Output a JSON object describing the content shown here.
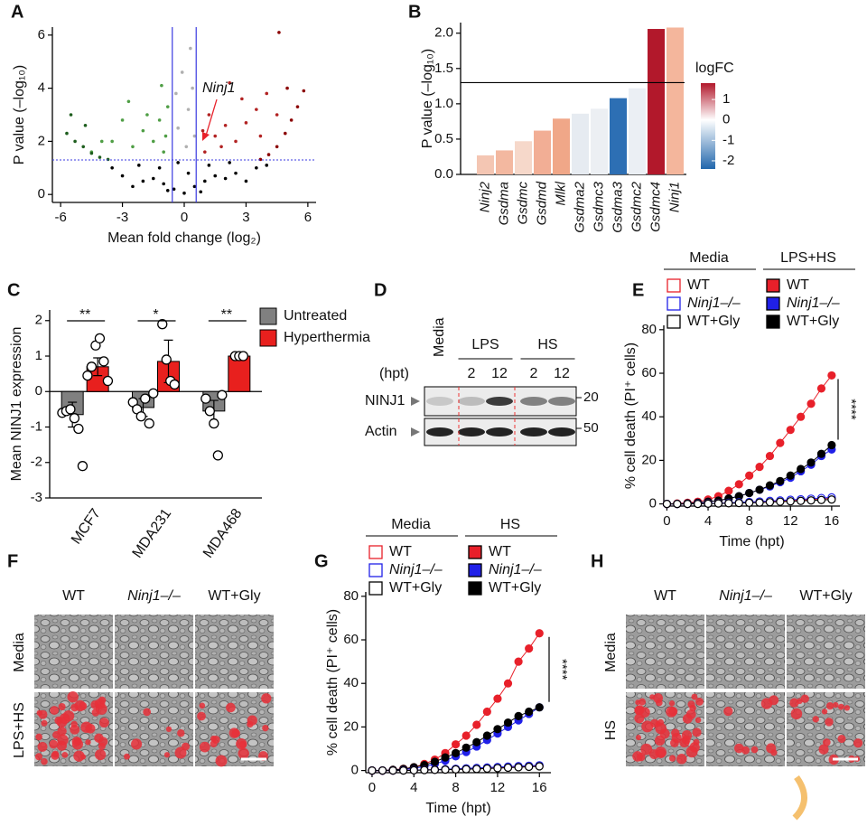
{
  "chart_data": [
    {
      "panel": "A",
      "type": "scatter",
      "xlabel": "Mean fold change (log₂)",
      "ylabel": "P value (–log₁₀)",
      "annotation": "Ninj1",
      "xlim": [
        -6.4,
        6.4
      ],
      "ylim": [
        -0.3,
        6.3
      ],
      "xticks": [
        -6,
        -3,
        0,
        3,
        6
      ],
      "yticks": [
        0,
        2,
        4,
        6
      ],
      "thresholds": {
        "x": [
          -0.58,
          0.58
        ],
        "y": 1.3,
        "color": "#3a3ae0"
      },
      "series": [
        {
          "color": "#000000",
          "x": [
            -2.5,
            -2,
            -1.5,
            -1,
            -0.5,
            0,
            0.5,
            1,
            1.5,
            2,
            2.5,
            3,
            -3,
            -1.2,
            1.2,
            0.2,
            -0.3,
            3.5,
            -3.5,
            2.2,
            -2.2,
            0.8,
            -0.8,
            4
          ],
          "values": [
            0.3,
            0.5,
            0.6,
            0.4,
            0.2,
            0.05,
            0.3,
            0.5,
            0.7,
            0.6,
            0.8,
            0.5,
            0.7,
            1.0,
            1.1,
            0.8,
            1.2,
            1.0,
            1.0,
            1.2,
            1.1,
            0.1,
            0.15,
            1.1
          ]
        },
        {
          "color": "#b0b0b0",
          "x": [
            -0.3,
            0.2,
            0.4,
            -0.1,
            0.3,
            0.1,
            -0.4,
            0.5
          ],
          "values": [
            2.5,
            3.2,
            4.0,
            4.6,
            5.5,
            1.8,
            3.8,
            2.2
          ]
        },
        {
          "color": "#4f9e45",
          "x": [
            -1,
            -1.5,
            -2,
            -3,
            -2.5,
            -1.2,
            -0.8,
            -1.8,
            -3.5,
            -4,
            -1.1,
            -2.7,
            -4.5,
            -0.9
          ],
          "values": [
            1.6,
            2.0,
            2.4,
            2.8,
            1.8,
            2.8,
            3.3,
            3.0,
            2.0,
            2.0,
            4.1,
            3.5,
            1.6,
            2.2
          ]
        },
        {
          "color": "#1e5e1e",
          "x": [
            -5.7,
            -5.3,
            -4.9,
            -4.5,
            -4.1,
            -3.7,
            -5.5,
            -4.8
          ],
          "values": [
            2.3,
            2.0,
            1.8,
            1.55,
            1.4,
            1.32,
            3.0,
            2.6
          ]
        },
        {
          "color": "#b22222",
          "x": [
            1,
            1.5,
            2,
            2.5,
            3,
            3.5,
            2.8,
            1.2,
            4,
            3.7,
            2.2,
            1.8,
            4.5,
            0.9
          ],
          "values": [
            1.6,
            2.2,
            2.6,
            2.0,
            2.7,
            3.2,
            3.6,
            3.0,
            3.8,
            2.2,
            4.2,
            1.8,
            3.0,
            2.4
          ]
        },
        {
          "color": "#8b0000",
          "x": [
            3.7,
            4.1,
            4.5,
            4.9,
            5.2,
            5.5,
            5.8,
            4.6,
            5.0
          ],
          "values": [
            1.32,
            1.5,
            1.8,
            2.3,
            2.8,
            3.3,
            3.9,
            6.1,
            4.0
          ]
        }
      ]
    },
    {
      "panel": "B",
      "type": "bar",
      "ylabel": "P value (–log₁₀)",
      "categories": [
        "Ninj2",
        "Gsdma",
        "Gsdmc",
        "Gsdmd",
        "Mlkl",
        "Gsdma2",
        "Gsdmc3",
        "Gsdma3",
        "Gsdmc2",
        "Gsdmc4",
        "Ninj1"
      ],
      "values": [
        0.27,
        0.34,
        0.47,
        0.62,
        0.79,
        0.86,
        0.93,
        1.08,
        1.22,
        2.06,
        2.08
      ],
      "colors": [
        "#f4c6b3",
        "#f3b8a0",
        "#f6d8ca",
        "#f2ae95",
        "#f0a788",
        "#e6ebf1",
        "#eceff3",
        "#2d6fb4",
        "#ebeff4",
        "#b2182b",
        "#f4b69c"
      ],
      "ylim": [
        0,
        2.15
      ],
      "yticks": [
        {
          "value": 0,
          "label": "0.0"
        },
        0.5,
        {
          "value": 1,
          "label": "1.0"
        },
        1.5,
        {
          "value": 2,
          "label": "2.0"
        }
      ],
      "threshold": 1.3,
      "colorbar": {
        "label": "logFC",
        "lim": [
          -2.4,
          1.8
        ],
        "ticks": [
          1,
          0,
          -1,
          -2
        ],
        "colors": [
          "#b2182b",
          "#ffffff",
          "#2166ac"
        ]
      }
    },
    {
      "panel": "C",
      "type": "grouped_bar",
      "ylabel": "Mean NINJ1 expression",
      "categories": [
        "MCF7",
        "MDA231",
        "MDA468"
      ],
      "ylim": [
        -3,
        2.3
      ],
      "yticks": [
        -3,
        -2,
        -1,
        0,
        1,
        2
      ],
      "annotations": [
        "**",
        "*",
        "**"
      ],
      "series": [
        {
          "name": "Untreated",
          "color": "#808080",
          "values": [
            -0.65,
            -0.45,
            -0.55
          ],
          "errors": [
            0.35,
            0.25,
            0.3
          ],
          "points": [
            [
              -0.6,
              -0.55,
              -0.5,
              -0.75,
              -1.05,
              -2.1
            ],
            [
              -0.3,
              -0.5,
              -0.7,
              -0.2,
              -0.9,
              -0.05
            ],
            [
              -0.2,
              -0.55,
              -0.9,
              -1.8,
              -0.1
            ]
          ]
        },
        {
          "name": "Hyperthermia",
          "color": "#e8201e",
          "values": [
            0.7,
            0.85,
            1.0
          ],
          "errors": [
            0.25,
            0.6,
            0.05
          ],
          "points": [
            [
              0.45,
              0.7,
              1.3,
              1.5,
              0.85,
              0.3
            ],
            [
              1.9,
              0.9,
              0.3,
              0.2
            ],
            [
              1.0,
              1.0,
              1.0
            ]
          ]
        }
      ]
    },
    {
      "panel": "E",
      "type": "line",
      "xlabel": "Time (hpt)",
      "ylabel": "% cell death (PI⁺ cells)",
      "annotation": "****",
      "legend_titles": [
        "Media",
        "LPS+HS"
      ],
      "xlim": [
        -0.3,
        16.8
      ],
      "ylim": [
        -1,
        82
      ],
      "xticks": [
        0,
        4,
        8,
        12,
        16
      ],
      "yticks": [
        0,
        20,
        40,
        60,
        80
      ],
      "x": [
        0,
        1,
        2,
        3,
        4,
        5,
        6,
        7,
        8,
        9,
        10,
        11,
        12,
        13,
        14,
        15,
        16
      ],
      "series": [
        {
          "name": "WT",
          "color": "#e8202a",
          "marker": "filled",
          "values": [
            0,
            0.2,
            0.5,
            1,
            2,
            3.5,
            6,
            9,
            13,
            17,
            22,
            28,
            34,
            40,
            46,
            53,
            59
          ]
        },
        {
          "name": "Ninj1–/–",
          "color": "#2020e8",
          "marker": "filled",
          "values": [
            0,
            0,
            0.2,
            0.5,
            1,
            1.5,
            2.5,
            3.5,
            5,
            6.5,
            8,
            10,
            12,
            15,
            18,
            22,
            25
          ]
        },
        {
          "name": "WT+Gly",
          "color": "#000000",
          "marker": "filled",
          "values": [
            0,
            0,
            0.2,
            0.5,
            1,
            1.5,
            2.5,
            3.5,
            5,
            6.5,
            8.5,
            10.5,
            13,
            16,
            19,
            23,
            27
          ]
        },
        {
          "name": "WT",
          "color": "#e8202a",
          "marker": "open",
          "values": [
            0,
            0,
            0,
            0.1,
            0.2,
            0.3,
            0.4,
            0.5,
            0.7,
            0.9,
            1.1,
            1.3,
            1.5,
            1.8,
            2,
            2.3,
            2.6
          ]
        },
        {
          "name": "Ninj1–/–",
          "color": "#2020e8",
          "marker": "open",
          "values": [
            0,
            0,
            0,
            0.1,
            0.2,
            0.3,
            0.5,
            0.7,
            0.9,
            1.1,
            1.4,
            1.6,
            1.9,
            2.1,
            2.4,
            2.7,
            3
          ]
        },
        {
          "name": "WT+Gly",
          "color": "#000000",
          "marker": "open",
          "values": [
            0,
            0,
            0,
            0,
            0.1,
            0.2,
            0.3,
            0.4,
            0.5,
            0.6,
            0.8,
            1,
            1.2,
            1.4,
            1.6,
            1.8,
            2
          ]
        }
      ]
    },
    {
      "panel": "G",
      "type": "line",
      "xlabel": "Time (hpt)",
      "ylabel": "% cell death (PI⁺ cells)",
      "annotation": "****",
      "legend_titles": [
        "Media",
        "HS"
      ],
      "xlim": [
        -0.6,
        17.1
      ],
      "ylim": [
        -1,
        82
      ],
      "xticks": [
        0,
        4,
        8,
        12,
        16
      ],
      "yticks": [
        0,
        20,
        40,
        60,
        80
      ],
      "x": [
        0,
        1,
        2,
        3,
        4,
        5,
        6,
        7,
        8,
        9,
        10,
        11,
        12,
        13,
        14,
        15,
        16
      ],
      "series": [
        {
          "name": "WT",
          "color": "#e8202a",
          "marker": "filled",
          "values": [
            0,
            0,
            0.3,
            0.8,
            1.5,
            3,
            5,
            8,
            12,
            16,
            21,
            27,
            33,
            40,
            50,
            56,
            63
          ]
        },
        {
          "name": "Ninj1–/–",
          "color": "#2020e8",
          "marker": "filled",
          "values": [
            0,
            0,
            0.2,
            0.5,
            1,
            1.8,
            3,
            4.5,
            6.5,
            8.5,
            11,
            14,
            17,
            20,
            23,
            26,
            29
          ]
        },
        {
          "name": "WT+Gly",
          "color": "#000000",
          "marker": "filled",
          "values": [
            0,
            0,
            0.3,
            0.7,
            1.5,
            2.5,
            4,
            6,
            8,
            10.5,
            13,
            16,
            19,
            22,
            25,
            27,
            29
          ]
        },
        {
          "name": "WT",
          "color": "#e8202a",
          "marker": "open",
          "values": [
            0,
            0,
            0,
            0.1,
            0.2,
            0.3,
            0.4,
            0.5,
            0.6,
            0.7,
            0.9,
            1.1,
            1.3,
            1.5,
            1.7,
            1.9,
            2.1
          ]
        },
        {
          "name": "Ninj1–/–",
          "color": "#2020e8",
          "marker": "open",
          "values": [
            0,
            0,
            0,
            0.1,
            0.2,
            0.3,
            0.4,
            0.6,
            0.8,
            1,
            1.2,
            1.4,
            1.6,
            1.8,
            2,
            2.2,
            2.4
          ]
        },
        {
          "name": "WT+Gly",
          "color": "#000000",
          "marker": "open",
          "values": [
            0,
            0,
            0,
            0,
            0.1,
            0.2,
            0.3,
            0.4,
            0.5,
            0.6,
            0.7,
            0.9,
            1.1,
            1.3,
            1.5,
            1.7,
            1.9
          ]
        }
      ]
    }
  ],
  "blot": {
    "panel": "D",
    "media": "Media",
    "time_label": "(hpt)",
    "groups": [
      {
        "label": "LPS",
        "times": [
          "2",
          "12"
        ]
      },
      {
        "label": "HS",
        "times": [
          "2",
          "12"
        ]
      }
    ],
    "rows": [
      {
        "label": "NINJ1",
        "marker": "20"
      },
      {
        "label": "Actin",
        "marker": "50"
      }
    ]
  },
  "images": [
    {
      "panel": "F",
      "columns": [
        "WT",
        "Ninj1–/–",
        "WT+Gly"
      ],
      "rows": [
        "Media",
        "LPS+HS"
      ]
    },
    {
      "panel": "H",
      "columns": [
        "WT",
        "Ninj1–/–",
        "WT+Gly"
      ],
      "rows": [
        "Media",
        "HS"
      ]
    }
  ]
}
